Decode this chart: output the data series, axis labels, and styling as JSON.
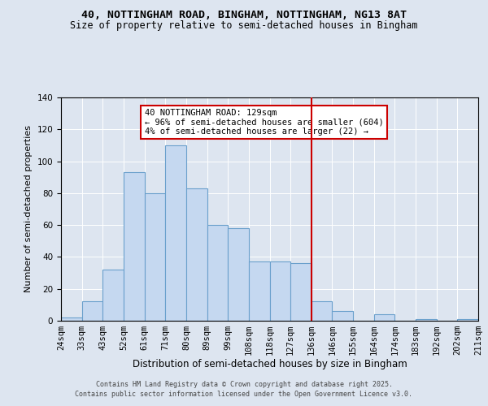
{
  "title": "40, NOTTINGHAM ROAD, BINGHAM, NOTTINGHAM, NG13 8AT",
  "subtitle": "Size of property relative to semi-detached houses in Bingham",
  "categories": [
    "24sqm",
    "33sqm",
    "43sqm",
    "52sqm",
    "61sqm",
    "71sqm",
    "80sqm",
    "89sqm",
    "99sqm",
    "108sqm",
    "118sqm",
    "127sqm",
    "136sqm",
    "146sqm",
    "155sqm",
    "164sqm",
    "174sqm",
    "183sqm",
    "192sqm",
    "202sqm",
    "211sqm"
  ],
  "bar_values": [
    2,
    12,
    32,
    93,
    80,
    110,
    83,
    60,
    58,
    37,
    37,
    36,
    12,
    6,
    0,
    4,
    0,
    1,
    0,
    1
  ],
  "bar_color": "#c5d8f0",
  "bar_edge_color": "#6aa0cc",
  "vline_x_index": 11,
  "vline_color": "#cc0000",
  "annotation_title": "40 NOTTINGHAM ROAD: 129sqm",
  "annotation_line1": "← 96% of semi-detached houses are smaller (604)",
  "annotation_line2": "4% of semi-detached houses are larger (22) →",
  "xlabel": "Distribution of semi-detached houses by size in Bingham",
  "ylabel": "Number of semi-detached properties",
  "ylim": [
    0,
    140
  ],
  "yticks": [
    0,
    20,
    40,
    60,
    80,
    100,
    120,
    140
  ],
  "background_color": "#dde5f0",
  "plot_background": "#dde5f0",
  "grid_color": "#ffffff",
  "footer_line1": "Contains HM Land Registry data © Crown copyright and database right 2025.",
  "footer_line2": "Contains public sector information licensed under the Open Government Licence v3.0.",
  "title_fontsize": 9.5,
  "subtitle_fontsize": 8.5,
  "xlabel_fontsize": 8.5,
  "ylabel_fontsize": 8.0,
  "tick_fontsize": 7.5,
  "footer_fontsize": 6.0,
  "annotation_fontsize": 7.5
}
